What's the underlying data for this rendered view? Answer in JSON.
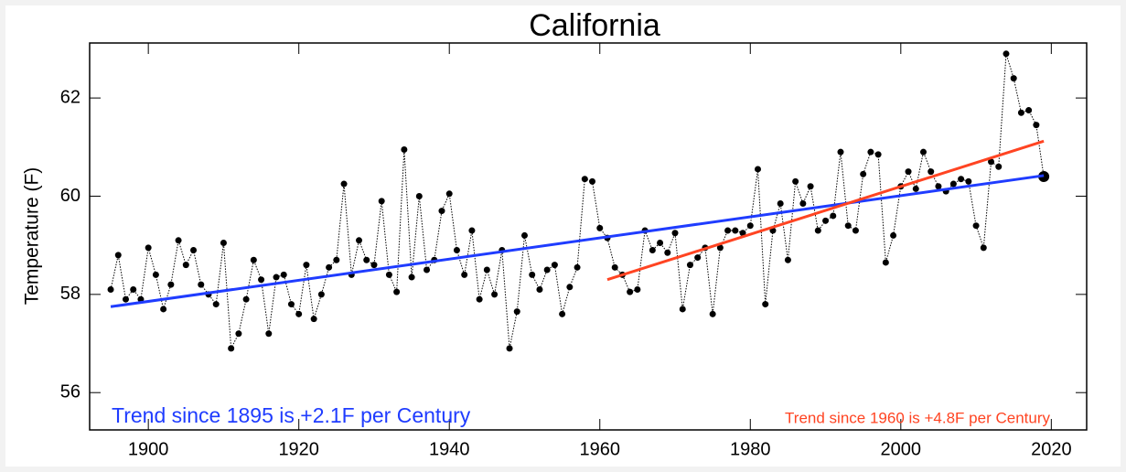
{
  "chart_data": {
    "type": "line",
    "title": "California",
    "ylabel": "Temperature (F)",
    "x": [
      1895,
      1896,
      1897,
      1898,
      1899,
      1900,
      1901,
      1902,
      1903,
      1904,
      1905,
      1906,
      1907,
      1908,
      1909,
      1910,
      1911,
      1912,
      1913,
      1914,
      1915,
      1916,
      1917,
      1918,
      1919,
      1920,
      1921,
      1922,
      1923,
      1924,
      1925,
      1926,
      1927,
      1928,
      1929,
      1930,
      1931,
      1932,
      1933,
      1934,
      1935,
      1936,
      1937,
      1938,
      1939,
      1940,
      1941,
      1942,
      1943,
      1944,
      1945,
      1946,
      1947,
      1948,
      1949,
      1950,
      1951,
      1952,
      1953,
      1954,
      1955,
      1956,
      1957,
      1958,
      1959,
      1960,
      1961,
      1962,
      1963,
      1964,
      1965,
      1966,
      1967,
      1968,
      1969,
      1970,
      1971,
      1972,
      1973,
      1974,
      1975,
      1976,
      1977,
      1978,
      1979,
      1980,
      1981,
      1982,
      1983,
      1984,
      1985,
      1986,
      1987,
      1988,
      1989,
      1990,
      1991,
      1992,
      1993,
      1994,
      1995,
      1996,
      1997,
      1998,
      1999,
      2000,
      2001,
      2002,
      2003,
      2004,
      2005,
      2006,
      2007,
      2008,
      2009,
      2010,
      2011,
      2012,
      2013,
      2014,
      2015,
      2016,
      2017,
      2018,
      2019
    ],
    "series": [
      {
        "color": "#000000",
        "values": [
          58.1,
          58.8,
          57.9,
          58.1,
          57.9,
          58.95,
          58.4,
          57.7,
          58.2,
          59.1,
          58.6,
          58.9,
          58.2,
          58.0,
          57.8,
          59.05,
          56.9,
          57.2,
          57.9,
          58.7,
          58.3,
          57.2,
          58.35,
          58.4,
          57.8,
          57.6,
          58.6,
          57.5,
          58.0,
          58.55,
          58.7,
          60.25,
          58.4,
          59.1,
          58.7,
          58.6,
          59.9,
          58.4,
          58.05,
          60.95,
          58.35,
          60.0,
          58.5,
          58.7,
          59.7,
          60.05,
          58.9,
          58.4,
          59.3,
          57.9,
          58.5,
          58.0,
          58.9,
          56.9,
          57.65,
          59.2,
          58.4,
          58.1,
          58.5,
          58.6,
          57.6,
          58.15,
          58.55,
          60.35,
          60.3,
          59.35,
          59.15,
          58.55,
          58.4,
          58.05,
          58.1,
          59.3,
          58.9,
          59.05,
          58.85,
          59.25,
          57.7,
          58.6,
          58.75,
          58.95,
          57.6,
          58.95,
          59.3,
          59.3,
          59.25,
          59.4,
          60.55,
          57.8,
          59.3,
          59.85,
          58.7,
          60.3,
          59.85,
          60.2,
          59.3,
          59.5,
          59.6,
          60.9,
          59.4,
          59.3,
          60.45,
          60.9,
          60.85,
          58.65,
          59.2,
          60.2,
          60.5,
          60.15,
          60.9,
          60.5,
          60.2,
          60.1,
          60.25,
          60.35,
          60.3,
          59.4,
          58.95,
          60.7,
          60.6,
          62.9,
          62.4,
          61.7,
          61.75,
          61.45,
          60.4
        ]
      }
    ],
    "trends": [
      {
        "color": "#1f3cff",
        "x": [
          1895,
          2019
        ],
        "values": [
          57.75,
          60.42
        ]
      },
      {
        "color": "#ff4422",
        "x": [
          1961,
          2019
        ],
        "values": [
          58.3,
          61.12
        ]
      }
    ],
    "annotations": [
      {
        "text": "Trend since 1895 is +2.1F per Century",
        "color": "#1f3cff"
      },
      {
        "text": "Trend since 1960 is +4.8F per Century",
        "color": "#ff4422"
      }
    ],
    "xlim": [
      1892.2,
      2024.7
    ],
    "ylim": [
      55.24,
      63.12
    ],
    "xticks": [
      1900,
      1920,
      1940,
      1960,
      1980,
      2000,
      2020
    ],
    "yticks": [
      56,
      58,
      60,
      62
    ]
  }
}
